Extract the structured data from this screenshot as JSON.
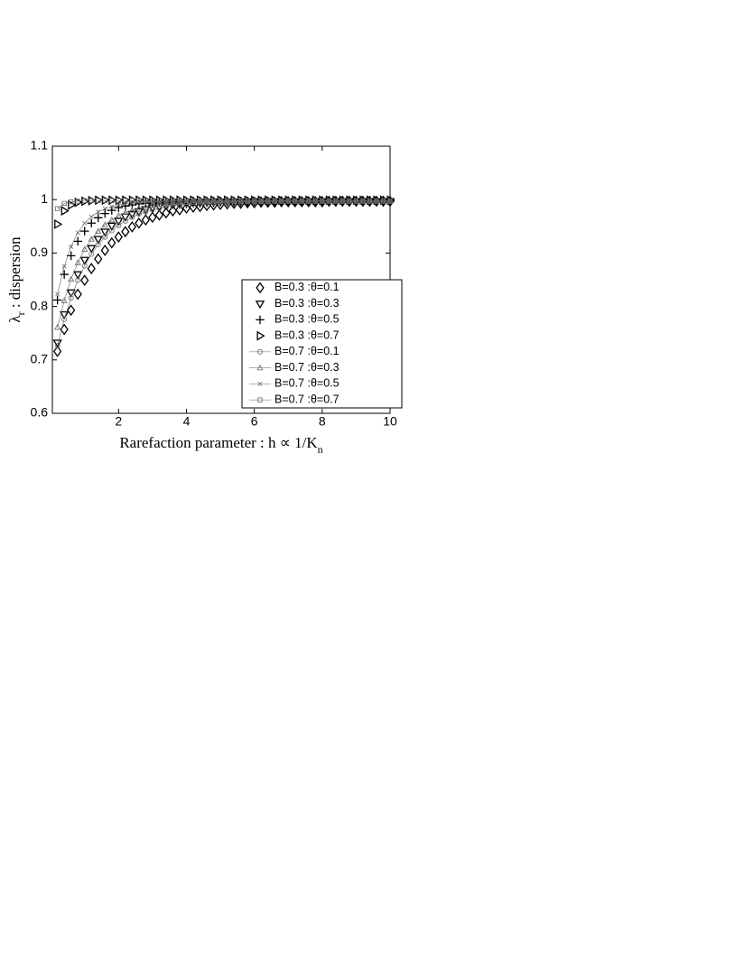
{
  "chart_data": {
    "type": "scatter",
    "xlabel": [
      "Rarefaction parameter : h ∝ 1/K",
      "n"
    ],
    "ylabel": [
      "λ",
      "r",
      " : dispersion"
    ],
    "xlim": [
      0.05,
      10
    ],
    "ylim": [
      0.6,
      1.1
    ],
    "xticks": [
      2,
      4,
      6,
      8,
      10
    ],
    "yticks": [
      0.6,
      0.7,
      0.8,
      0.9,
      1,
      1.1
    ],
    "legend": "lower right",
    "x": [
      0.2,
      0.4,
      0.6,
      0.8,
      1,
      1.2,
      1.4,
      1.6,
      1.8,
      2,
      2.2,
      2.4,
      2.6,
      2.8,
      3,
      3.2,
      3.4,
      3.6,
      3.8,
      4,
      4.2,
      4.4,
      4.6,
      4.8,
      5,
      5.2,
      5.4,
      5.6,
      5.8,
      6,
      6.2,
      6.4,
      6.6,
      6.8,
      7,
      7.2,
      7.4,
      7.6,
      7.8,
      8,
      8.2,
      8.4,
      8.6,
      8.8,
      9,
      9.2,
      9.4,
      9.6,
      9.8,
      10
    ],
    "series": [
      {
        "name": "B=0.3 :θ=0.1",
        "color": "#000000",
        "marker": "diamond",
        "line": false,
        "values": [
          0.716,
          0.757,
          0.793,
          0.823,
          0.849,
          0.871,
          0.889,
          0.905,
          0.919,
          0.93,
          0.94,
          0.949,
          0.956,
          0.962,
          0.967,
          0.971,
          0.975,
          0.979,
          0.981,
          0.984,
          0.986,
          0.987,
          0.989,
          0.99,
          0.991,
          0.992,
          0.993,
          0.993,
          0.994,
          0.994,
          0.995,
          0.995,
          0.995,
          0.996,
          0.996,
          0.996,
          0.996,
          0.996,
          0.996,
          0.996,
          0.997,
          0.997,
          0.997,
          0.997,
          0.997,
          0.997,
          0.997,
          0.997,
          0.997,
          0.997
        ]
      },
      {
        "name": "B=0.3 :θ=0.3",
        "color": "#000000",
        "marker": "triangle-down",
        "line": false,
        "values": [
          0.732,
          0.785,
          0.826,
          0.86,
          0.887,
          0.909,
          0.926,
          0.94,
          0.951,
          0.96,
          0.968,
          0.973,
          0.978,
          0.982,
          0.985,
          0.987,
          0.989,
          0.991,
          0.992,
          0.993,
          0.994,
          0.994,
          0.995,
          0.995,
          0.996,
          0.996,
          0.996,
          0.996,
          0.996,
          0.997,
          0.997,
          0.997,
          0.997,
          0.997,
          0.997,
          0.997,
          0.997,
          0.997,
          0.997,
          0.997,
          0.997,
          0.997,
          0.997,
          0.997,
          0.997,
          0.997,
          0.997,
          0.997,
          0.997,
          0.997
        ]
      },
      {
        "name": "B=0.3 :θ=0.5",
        "color": "#000000",
        "marker": "plus",
        "line": false,
        "values": [
          0.812,
          0.86,
          0.895,
          0.922,
          0.941,
          0.956,
          0.966,
          0.974,
          0.98,
          0.985,
          0.988,
          0.99,
          0.992,
          0.993,
          0.994,
          0.995,
          0.996,
          0.996,
          0.996,
          0.996,
          0.997,
          0.997,
          0.997,
          0.997,
          0.997,
          0.997,
          0.997,
          0.997,
          0.997,
          0.997,
          0.997,
          0.997,
          0.997,
          0.997,
          0.997,
          0.997,
          0.997,
          0.997,
          0.997,
          0.997,
          0.997,
          0.997,
          0.997,
          0.997,
          0.997,
          0.997,
          0.997,
          0.997,
          0.997,
          0.997
        ]
      },
      {
        "name": "B=0.3 :θ=0.7",
        "color": "#000000",
        "marker": "triangle-right",
        "line": false,
        "values": [
          0.954,
          0.979,
          0.99,
          0.995,
          0.997,
          0.998,
          0.999,
          0.999,
          0.999,
          0.999,
          0.999,
          0.999,
          0.999,
          0.999,
          0.999,
          0.999,
          0.999,
          0.999,
          0.999,
          0.999,
          0.999,
          0.999,
          0.999,
          0.999,
          0.999,
          0.999,
          0.999,
          0.999,
          0.999,
          0.999,
          0.999,
          0.999,
          0.999,
          0.999,
          0.999,
          0.999,
          0.999,
          0.999,
          0.999,
          0.999,
          0.999,
          0.999,
          0.999,
          0.999,
          0.999,
          0.999,
          0.999,
          0.999,
          0.999,
          0.999
        ]
      },
      {
        "name": "B=0.7 :θ=0.1",
        "color": "#666666",
        "marker": "circle",
        "line": true,
        "values": [
          0.727,
          0.776,
          0.816,
          0.849,
          0.876,
          0.898,
          0.916,
          0.93,
          0.942,
          0.952,
          0.96,
          0.967,
          0.973,
          0.977,
          0.981,
          0.984,
          0.986,
          0.988,
          0.99,
          0.991,
          0.992,
          0.993,
          0.994,
          0.994,
          0.995,
          0.995,
          0.996,
          0.996,
          0.996,
          0.996,
          0.996,
          0.996,
          0.997,
          0.997,
          0.997,
          0.997,
          0.997,
          0.997,
          0.997,
          0.997,
          0.997,
          0.997,
          0.997,
          0.997,
          0.997,
          0.997,
          0.997,
          0.997,
          0.997,
          0.997
        ]
      },
      {
        "name": "B=0.7 :θ=0.3",
        "color": "#666666",
        "marker": "triangle-up",
        "line": true,
        "values": [
          0.761,
          0.811,
          0.851,
          0.882,
          0.907,
          0.926,
          0.941,
          0.953,
          0.962,
          0.97,
          0.976,
          0.98,
          0.984,
          0.987,
          0.989,
          0.991,
          0.992,
          0.993,
          0.994,
          0.995,
          0.995,
          0.996,
          0.996,
          0.996,
          0.996,
          0.996,
          0.997,
          0.997,
          0.997,
          0.997,
          0.997,
          0.997,
          0.997,
          0.997,
          0.997,
          0.997,
          0.997,
          0.997,
          0.997,
          0.997,
          0.997,
          0.997,
          0.997,
          0.997,
          0.997,
          0.997,
          0.997,
          0.997,
          0.997,
          0.997
        ]
      },
      {
        "name": "B=0.7 :θ=0.5",
        "color": "#666666",
        "marker": "x",
        "line": true,
        "values": [
          0.823,
          0.875,
          0.912,
          0.938,
          0.956,
          0.968,
          0.977,
          0.983,
          0.987,
          0.99,
          0.992,
          0.994,
          0.995,
          0.995,
          0.996,
          0.996,
          0.996,
          0.997,
          0.997,
          0.997,
          0.997,
          0.997,
          0.997,
          0.997,
          0.997,
          0.997,
          0.997,
          0.997,
          0.997,
          0.997,
          0.997,
          0.997,
          0.997,
          0.997,
          0.997,
          0.997,
          0.997,
          0.997,
          0.997,
          0.997,
          0.997,
          0.997,
          0.997,
          0.997,
          0.997,
          0.997,
          0.997,
          0.997,
          0.997,
          0.997
        ]
      },
      {
        "name": "B=0.7 :θ=0.7",
        "color": "#666666",
        "marker": "square",
        "line": true,
        "values": [
          0.983,
          0.993,
          0.996,
          0.997,
          0.998,
          0.998,
          0.998,
          0.998,
          0.998,
          0.998,
          0.998,
          0.998,
          0.998,
          0.998,
          0.998,
          0.998,
          0.998,
          0.998,
          0.998,
          0.998,
          0.998,
          0.998,
          0.998,
          0.998,
          0.998,
          0.998,
          0.998,
          0.998,
          0.998,
          0.998,
          0.998,
          0.998,
          0.998,
          0.998,
          0.998,
          0.998,
          0.998,
          0.998,
          0.998,
          0.998,
          0.998,
          0.998,
          0.998,
          0.998,
          0.998,
          0.998,
          0.998,
          0.998,
          0.998,
          0.998
        ]
      }
    ]
  }
}
